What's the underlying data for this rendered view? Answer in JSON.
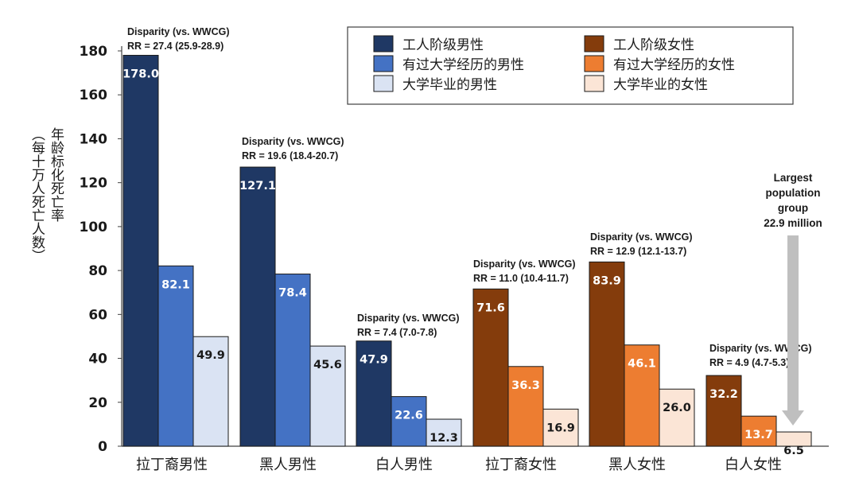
{
  "chart_data": {
    "type": "bar",
    "ylabel": "年龄标化死亡率（每十万人死亡人数）",
    "ylim": [
      0,
      180
    ],
    "yticks": [
      0,
      20,
      40,
      60,
      80,
      100,
      120,
      140,
      160,
      180
    ],
    "grid": false,
    "legend_position": "top-right",
    "categories": [
      "拉丁裔男性",
      "黑人男性",
      "白人男性",
      "拉丁裔女性",
      "黑人女性",
      "白人女性"
    ],
    "legend": [
      {
        "label": "工人阶级男性",
        "color": "#1f3864"
      },
      {
        "label": "工人阶级女性",
        "color": "#843c0c"
      },
      {
        "label": "有过大学经历的男性",
        "color": "#4472c4"
      },
      {
        "label": "有过大学经历的女性",
        "color": "#ed7d31"
      },
      {
        "label": "大学毕业的男性",
        "color": "#dae3f3"
      },
      {
        "label": "大学毕业的女性",
        "color": "#fbe5d6"
      }
    ],
    "groups": [
      {
        "category": "拉丁裔男性",
        "bars": [
          {
            "value": 178.0,
            "label": "178.0",
            "color": "#1f3864",
            "label_inside": true
          },
          {
            "value": 82.1,
            "label": "82.1",
            "color": "#4472c4",
            "label_inside": true
          },
          {
            "value": 49.9,
            "label": "49.9",
            "color": "#dae3f3",
            "label_inside": false
          }
        ],
        "annotation": [
          "Disparity (vs. WWCG)",
          "RR = 27.4 (25.9-28.9)"
        ]
      },
      {
        "category": "黑人男性",
        "bars": [
          {
            "value": 127.1,
            "label": "127.1",
            "color": "#1f3864",
            "label_inside": true
          },
          {
            "value": 78.4,
            "label": "78.4",
            "color": "#4472c4",
            "label_inside": true
          },
          {
            "value": 45.6,
            "label": "45.6",
            "color": "#dae3f3",
            "label_inside": false
          }
        ],
        "annotation": [
          "Disparity (vs. WWCG)",
          "RR = 19.6 (18.4-20.7)"
        ]
      },
      {
        "category": "白人男性",
        "bars": [
          {
            "value": 47.9,
            "label": "47.9",
            "color": "#1f3864",
            "label_inside": true
          },
          {
            "value": 22.6,
            "label": "22.6",
            "color": "#4472c4",
            "label_inside": true
          },
          {
            "value": 12.3,
            "label": "12.3",
            "color": "#dae3f3",
            "label_inside": false
          }
        ],
        "annotation": [
          "Disparity (vs. WWCG)",
          "RR = 7.4 (7.0-7.8)"
        ]
      },
      {
        "category": "拉丁裔女性",
        "bars": [
          {
            "value": 71.6,
            "label": "71.6",
            "color": "#843c0c",
            "label_inside": true
          },
          {
            "value": 36.3,
            "label": "36.3",
            "color": "#ed7d31",
            "label_inside": true
          },
          {
            "value": 16.9,
            "label": "16.9",
            "color": "#fbe5d6",
            "label_inside": false
          }
        ],
        "annotation": [
          "Disparity (vs. WWCG)",
          "RR = 11.0 (10.4-11.7)"
        ]
      },
      {
        "category": "黑人女性",
        "bars": [
          {
            "value": 83.9,
            "label": "83.9",
            "color": "#843c0c",
            "label_inside": true
          },
          {
            "value": 46.1,
            "label": "46.1",
            "color": "#ed7d31",
            "label_inside": true
          },
          {
            "value": 26.0,
            "label": "26.0",
            "color": "#fbe5d6",
            "label_inside": false
          }
        ],
        "annotation": [
          "Disparity (vs. WWCG)",
          "RR = 12.9 (12.1-13.7)"
        ]
      },
      {
        "category": "白人女性",
        "bars": [
          {
            "value": 32.2,
            "label": "32.2",
            "color": "#843c0c",
            "label_inside": true
          },
          {
            "value": 13.7,
            "label": "13.7",
            "color": "#ed7d31",
            "label_inside": true
          },
          {
            "value": 6.5,
            "label": "6.5",
            "color": "#fbe5d6",
            "label_inside": false
          }
        ],
        "annotation": [
          "Disparity (vs. WWCG)",
          "RR = 4.9 (4.7-5.3)"
        ]
      }
    ],
    "callout": {
      "lines": [
        "Largest",
        "population",
        "group",
        "22.9 million"
      ],
      "points_to": "白人女性 · 大学毕业的女性",
      "arrow_color": "#bfbfbf"
    }
  }
}
